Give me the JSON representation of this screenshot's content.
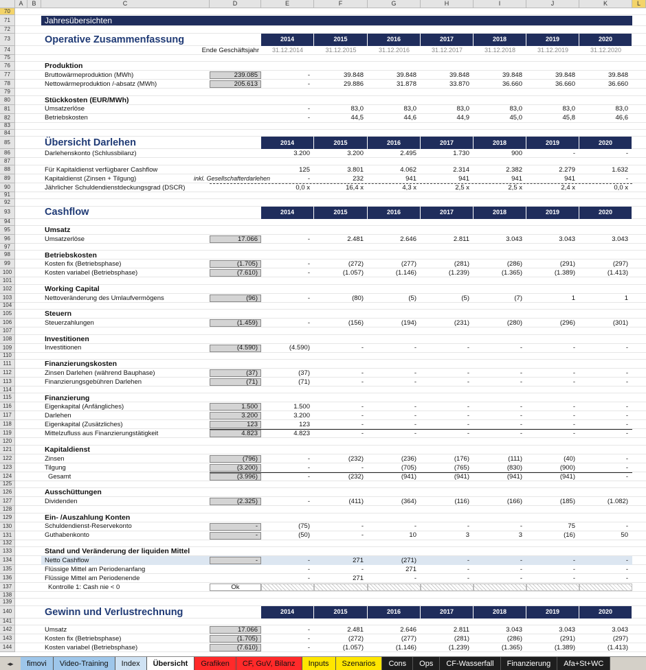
{
  "columns": [
    "A",
    "B",
    "C",
    "D",
    "E",
    "F",
    "G",
    "H",
    "I",
    "J",
    "K",
    "L"
  ],
  "rows": [
    {
      "n": 70
    },
    {
      "n": 71,
      "style": "title",
      "label": "Jahresübersichten"
    },
    {
      "n": 72
    },
    {
      "n": 73,
      "style": "section",
      "label": "Operative Zusammenfassung",
      "v": [
        "2014",
        "2015",
        "2016",
        "2017",
        "2018",
        "2019",
        "2020"
      ]
    },
    {
      "n": 74,
      "style": "dates",
      "d": "Ende Geschäftsjahr",
      "v": [
        "31.12.2014",
        "31.12.2015",
        "31.12.2016",
        "31.12.2017",
        "31.12.2018",
        "31.12.2019",
        "31.12.2020"
      ]
    },
    {
      "n": 75
    },
    {
      "n": 76,
      "style": "heading",
      "label": "Produktion"
    },
    {
      "n": 77,
      "label": "Bruttowärmeproduktion (MWh)",
      "d": "239.085",
      "v": [
        "-",
        "39.848",
        "39.848",
        "39.848",
        "39.848",
        "39.848",
        "39.848"
      ]
    },
    {
      "n": 78,
      "label": "Nettowärmeproduktion /-absatz (MWh)",
      "d": "205.613",
      "v": [
        "-",
        "29.886",
        "31.878",
        "33.870",
        "36.660",
        "36.660",
        "36.660"
      ]
    },
    {
      "n": 79
    },
    {
      "n": 80,
      "style": "heading",
      "label": "Stückkosten (EUR/MWh)"
    },
    {
      "n": 81,
      "label": "Umsatzerlöse",
      "v": [
        "-",
        "83,0",
        "83,0",
        "83,0",
        "83,0",
        "83,0",
        "83,0"
      ]
    },
    {
      "n": 82,
      "label": "Betriebskosten",
      "v": [
        "-",
        "44,5",
        "44,6",
        "44,9",
        "45,0",
        "45,8",
        "46,6"
      ]
    },
    {
      "n": 83
    },
    {
      "n": 84
    },
    {
      "n": 85,
      "style": "section",
      "label": "Übersicht Darlehen",
      "v": [
        "2014",
        "2015",
        "2016",
        "2017",
        "2018",
        "2019",
        "2020"
      ]
    },
    {
      "n": 86,
      "label": "Darlehenskonto (Schlussbilanz)",
      "v": [
        "3.200",
        "3.200",
        "2.495",
        "1.730",
        "900",
        "-",
        "-"
      ]
    },
    {
      "n": 87
    },
    {
      "n": 88,
      "label": "Für Kapitaldienst verfügbarer Cashflow",
      "v": [
        "125",
        "3.801",
        "4.062",
        "2.314",
        "2.382",
        "2.279",
        "1.632"
      ]
    },
    {
      "n": 89,
      "label": "Kapitaldienst (Zinsen + Tilgung)",
      "note": "inkl. Gesellschafterdarlehen",
      "v": [
        "-",
        "232",
        "941",
        "941",
        "941",
        "941",
        "-"
      ]
    },
    {
      "n": 90,
      "style": "ratio",
      "label": "Jährlicher Schuldendienstdeckungsgrad (DSCR)",
      "v": [
        "0,0 x",
        "16,4 x",
        "4,3 x",
        "2,5 x",
        "2,5 x",
        "2,4 x",
        "0,0 x"
      ]
    },
    {
      "n": 91
    },
    {
      "n": 92
    },
    {
      "n": 93,
      "style": "section",
      "label": "Cashflow",
      "v": [
        "2014",
        "2015",
        "2016",
        "2017",
        "2018",
        "2019",
        "2020"
      ]
    },
    {
      "n": 94
    },
    {
      "n": 95,
      "style": "heading",
      "label": "Umsatz"
    },
    {
      "n": 96,
      "label": "Umsatzerlöse",
      "d": "17.066",
      "v": [
        "-",
        "2.481",
        "2.646",
        "2.811",
        "3.043",
        "3.043",
        "3.043"
      ]
    },
    {
      "n": 97
    },
    {
      "n": 98,
      "style": "heading",
      "label": "Betriebskosten"
    },
    {
      "n": 99,
      "label": "Kosten fix (Betriebsphase)",
      "d": "(1.705)",
      "v": [
        "-",
        "(272)",
        "(277)",
        "(281)",
        "(286)",
        "(291)",
        "(297)"
      ]
    },
    {
      "n": 100,
      "label": "Kosten variabel (Betriebsphase)",
      "d": "(7.610)",
      "v": [
        "-",
        "(1.057)",
        "(1.146)",
        "(1.239)",
        "(1.365)",
        "(1.389)",
        "(1.413)"
      ]
    },
    {
      "n": 101
    },
    {
      "n": 102,
      "style": "heading",
      "label": "Working Capital"
    },
    {
      "n": 103,
      "label": "Nettoveränderung des Umlaufvermögens",
      "d": "(96)",
      "v": [
        "-",
        "(80)",
        "(5)",
        "(5)",
        "(7)",
        "1",
        "1"
      ]
    },
    {
      "n": 104
    },
    {
      "n": 105,
      "style": "heading",
      "label": "Steuern"
    },
    {
      "n": 106,
      "label": "Steuerzahlungen",
      "d": "(1.459)",
      "v": [
        "-",
        "(156)",
        "(194)",
        "(231)",
        "(280)",
        "(296)",
        "(301)"
      ]
    },
    {
      "n": 107
    },
    {
      "n": 108,
      "style": "heading",
      "label": "Investitionen"
    },
    {
      "n": 109,
      "label": "Investitionen",
      "d": "(4.590)",
      "v": [
        "(4.590)",
        "-",
        "-",
        "-",
        "-",
        "-",
        "-"
      ]
    },
    {
      "n": 110
    },
    {
      "n": 111,
      "style": "heading",
      "label": "Finanzierungskosten"
    },
    {
      "n": 112,
      "label": "Zinsen Darlehen (während Bauphase)",
      "d": "(37)",
      "v": [
        "(37)",
        "-",
        "-",
        "-",
        "-",
        "-",
        "-"
      ]
    },
    {
      "n": 113,
      "label": "Finanzierungsgebühren Darlehen",
      "d": "(71)",
      "v": [
        "(71)",
        "-",
        "-",
        "-",
        "-",
        "-",
        "-"
      ]
    },
    {
      "n": 114
    },
    {
      "n": 115,
      "style": "heading",
      "label": "Finanzierung"
    },
    {
      "n": 116,
      "label": "Eigenkapital (Anfängliches)",
      "d": "1.500",
      "v": [
        "1.500",
        "-",
        "-",
        "-",
        "-",
        "-",
        "-"
      ]
    },
    {
      "n": 117,
      "label": "Darlehen",
      "d": "3.200",
      "v": [
        "3.200",
        "-",
        "-",
        "-",
        "-",
        "-",
        "-"
      ]
    },
    {
      "n": 118,
      "label": "Eigenkapital (Zusätzliches)",
      "d": "123",
      "v": [
        "123",
        "-",
        "-",
        "-",
        "-",
        "-",
        "-"
      ]
    },
    {
      "n": 119,
      "style": "sum",
      "label": "Mittelzufluss aus Finanzierungstätigkeit",
      "d": "4.823",
      "v": [
        "4.823",
        "-",
        "-",
        "-",
        "-",
        "-",
        "-"
      ]
    },
    {
      "n": 120
    },
    {
      "n": 121,
      "style": "heading",
      "label": "Kapitaldienst"
    },
    {
      "n": 122,
      "label": "Zinsen",
      "d": "(796)",
      "v": [
        "-",
        "(232)",
        "(236)",
        "(176)",
        "(111)",
        "(40)",
        "-"
      ]
    },
    {
      "n": 123,
      "label": "Tilgung",
      "d": "(3.200)",
      "v": [
        "-",
        "-",
        "(705)",
        "(765)",
        "(830)",
        "(900)",
        "-"
      ]
    },
    {
      "n": 124,
      "style": "total",
      "label": "Gesamt",
      "d": "(3.996)",
      "v": [
        "-",
        "(232)",
        "(941)",
        "(941)",
        "(941)",
        "(941)",
        "-"
      ]
    },
    {
      "n": 125
    },
    {
      "n": 126,
      "style": "heading",
      "label": "Ausschüttungen"
    },
    {
      "n": 127,
      "label": "Dividenden",
      "d": "(2.325)",
      "v": [
        "-",
        "(411)",
        "(364)",
        "(116)",
        "(166)",
        "(185)",
        "(1.082)"
      ]
    },
    {
      "n": 128
    },
    {
      "n": 129,
      "style": "heading",
      "label": "Ein- /Auszahlung Konten"
    },
    {
      "n": 130,
      "label": "Schuldendienst-Reservekonto",
      "d": "-",
      "v": [
        "(75)",
        "-",
        "-",
        "-",
        "-",
        "75",
        "-"
      ]
    },
    {
      "n": 131,
      "label": "Guthabenkonto",
      "d": "-",
      "v": [
        "(50)",
        "-",
        "10",
        "3",
        "3",
        "(16)",
        "50"
      ]
    },
    {
      "n": 132
    },
    {
      "n": 133,
      "style": "heading",
      "label": "Stand und Veränderung der liquiden Mittel"
    },
    {
      "n": 134,
      "style": "highlight",
      "label": "Netto Cashflow",
      "d": "-",
      "v": [
        "-",
        "271",
        "(271)",
        "-",
        "-",
        "-",
        "-"
      ]
    },
    {
      "n": 135,
      "label": "Flüssige Mittel am Periodenanfang",
      "v": [
        "-",
        "-",
        "271",
        "-",
        "-",
        "-",
        "-"
      ]
    },
    {
      "n": 136,
      "label": "Flüssige Mittel am Periodenende",
      "v": [
        "-",
        "271",
        "-",
        "-",
        "-",
        "-",
        "-"
      ]
    },
    {
      "n": 137,
      "style": "check",
      "label": "Kontrolle 1: Cash nie < 0",
      "d": "Ok"
    },
    {
      "n": 138
    },
    {
      "n": 139
    },
    {
      "n": 140,
      "style": "section",
      "label": "Gewinn und Verlustrechnung",
      "v": [
        "2014",
        "2015",
        "2016",
        "2017",
        "2018",
        "2019",
        "2020"
      ]
    },
    {
      "n": 141
    },
    {
      "n": 142,
      "label": "Umsatz",
      "d": "17.066",
      "v": [
        "-",
        "2.481",
        "2.646",
        "2.811",
        "3.043",
        "3.043",
        "3.043"
      ]
    },
    {
      "n": 143,
      "label": "Kosten fix (Betriebsphase)",
      "d": "(1.705)",
      "v": [
        "-",
        "(272)",
        "(277)",
        "(281)",
        "(286)",
        "(291)",
        "(297)"
      ]
    },
    {
      "n": 144,
      "label": "Kosten variabel (Betriebsphase)",
      "d": "(7.610)",
      "v": [
        "-",
        "(1.057)",
        "(1.146)",
        "(1.239)",
        "(1.365)",
        "(1.389)",
        "(1.413)"
      ]
    }
  ],
  "tabs": [
    {
      "name": "fimovi",
      "color": "#9ec6ea"
    },
    {
      "name": "Video-Training",
      "color": "#9ec6ea"
    },
    {
      "name": "Index",
      "color": "#cfe2f3"
    },
    {
      "name": "Übersicht",
      "color": "#ffffff",
      "active": true
    },
    {
      "name": "Grafiken",
      "color": "#ff2a2a"
    },
    {
      "name": "CF, GuV, Bilanz",
      "color": "#ff2a2a"
    },
    {
      "name": "Inputs",
      "color": "#ffe600"
    },
    {
      "name": "Szenarios",
      "color": "#ffe600"
    },
    {
      "name": "Cons",
      "color": "#1e1e1e"
    },
    {
      "name": "Ops",
      "color": "#1e1e1e"
    },
    {
      "name": "CF-Wasserfall",
      "color": "#1e1e1e"
    },
    {
      "name": "Finanzierung",
      "color": "#1e1e1e"
    },
    {
      "name": "Afa+St+WC",
      "color": "#1e1e1e"
    }
  ]
}
